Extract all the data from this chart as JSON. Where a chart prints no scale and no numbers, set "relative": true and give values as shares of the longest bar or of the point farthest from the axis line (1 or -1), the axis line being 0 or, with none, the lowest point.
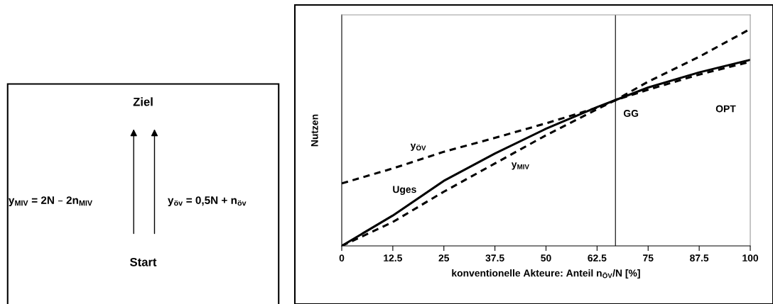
{
  "chart_data": [
    {
      "type": "other",
      "annotations": [
        "Ziel",
        "y$_{MIV}$ = 2N – 2n$_{MIV}$",
        "y$_{öv}$ = 0,5N + n$_{öv}$",
        "Start"
      ]
    },
    {
      "type": "line",
      "relative": true,
      "xlabel": "konventionelle Akteure: Anteil n$_{ÖV}$/N [%]",
      "ylabel": "Nutzen",
      "xlim": [
        0,
        100
      ],
      "xticks": [
        0,
        12.5,
        25,
        37.5,
        50,
        62.5,
        75,
        87.5,
        100
      ],
      "x": [
        0,
        12.5,
        25,
        37.5,
        50,
        62.5,
        67,
        75,
        87.5,
        100
      ],
      "series": [
        {
          "name": "y$_{ÖV}$",
          "color": "#000000",
          "line_style": "dashed",
          "values": [
            0.288,
            0.357,
            0.434,
            0.498,
            0.565,
            0.637,
            0.672,
            0.757,
            0.872,
            1.0
          ]
        },
        {
          "name": "y$_{MIV}$",
          "color": "#000000",
          "line_style": "dashed",
          "values": [
            0,
            0.11,
            0.25,
            0.38,
            0.51,
            0.63,
            0.672,
            0.72,
            0.79,
            0.849
          ]
        },
        {
          "name": "Uges",
          "color": "#000000",
          "line_style": "solid",
          "values": [
            0,
            0.14,
            0.3,
            0.426,
            0.54,
            0.64,
            0.672,
            0.73,
            0.8,
            0.858
          ]
        }
      ],
      "ref_lines": [
        {
          "axis": "x",
          "value": 67,
          "label": "GG",
          "color": "#000000"
        }
      ],
      "annotations": [
        "OPT"
      ],
      "grid": false,
      "marker": "none"
    }
  ]
}
